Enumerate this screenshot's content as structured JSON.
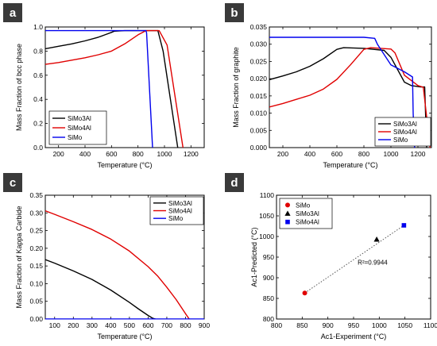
{
  "chart_data": [
    {
      "panel": "a",
      "type": "line",
      "xlabel": "Temperature (°C)",
      "ylabel": "Mass Fraction of bcc phase",
      "xlim": [
        100,
        1300
      ],
      "ylim": [
        0.0,
        1.0
      ],
      "xticks": [
        200,
        400,
        600,
        800,
        1000,
        1200
      ],
      "yticks": [
        0.0,
        0.2,
        0.4,
        0.6,
        0.8,
        1.0
      ],
      "tick_labels_x": [
        "200",
        "400",
        "600",
        "800",
        "1000",
        "1200"
      ],
      "tick_labels_y": [
        "0.0",
        "0.2",
        "0.4",
        "0.6",
        "0.8",
        "1.0"
      ],
      "legend_position": "bottom-left",
      "series": [
        {
          "name": "SiMo3Al",
          "color": "#000000",
          "x": [
            100,
            200,
            300,
            400,
            500,
            550,
            600,
            620,
            700,
            800,
            950,
            990,
            1100
          ],
          "y": [
            0.82,
            0.84,
            0.86,
            0.885,
            0.915,
            0.935,
            0.955,
            0.965,
            0.97,
            0.97,
            0.97,
            0.8,
            0.0
          ]
        },
        {
          "name": "SiMo4Al",
          "color": "#e00000",
          "x": [
            100,
            200,
            300,
            400,
            500,
            600,
            700,
            800,
            860,
            960,
            1020,
            1140
          ],
          "y": [
            0.69,
            0.705,
            0.725,
            0.745,
            0.77,
            0.8,
            0.86,
            0.935,
            0.97,
            0.97,
            0.85,
            0.0
          ]
        },
        {
          "name": "SiMo",
          "color": "#0000ee",
          "x": [
            100,
            200,
            300,
            400,
            500,
            600,
            700,
            800,
            860,
            865,
            910
          ],
          "y": [
            0.97,
            0.97,
            0.97,
            0.97,
            0.97,
            0.97,
            0.97,
            0.97,
            0.97,
            0.95,
            0.0
          ]
        }
      ]
    },
    {
      "panel": "b",
      "type": "line",
      "xlabel": "Temperature (°C)",
      "ylabel": "Mass Fraction of graphite",
      "xlim": [
        100,
        1300
      ],
      "ylim": [
        0.0,
        0.035
      ],
      "xticks": [
        200,
        400,
        600,
        800,
        1000,
        1200
      ],
      "yticks": [
        0.0,
        0.005,
        0.01,
        0.015,
        0.02,
        0.025,
        0.03,
        0.035
      ],
      "tick_labels_x": [
        "200",
        "400",
        "600",
        "800",
        "1000",
        "1200"
      ],
      "tick_labels_y": [
        "0.000",
        "0.005",
        "0.010",
        "0.015",
        "0.020",
        "0.025",
        "0.030",
        "0.035"
      ],
      "legend_position": "bottom-right",
      "series": [
        {
          "name": "SiMo3Al",
          "color": "#000000",
          "x": [
            100,
            200,
            300,
            400,
            500,
            600,
            650,
            800,
            950,
            1000,
            1100,
            1150,
            1220,
            1250,
            1265
          ],
          "y": [
            0.0197,
            0.0208,
            0.022,
            0.0236,
            0.0258,
            0.0285,
            0.029,
            0.0288,
            0.0282,
            0.0262,
            0.019,
            0.018,
            0.0176,
            0.0176,
            0.0
          ]
        },
        {
          "name": "SiMo4Al",
          "color": "#e00000",
          "x": [
            100,
            200,
            300,
            400,
            500,
            600,
            700,
            800,
            850,
            1000,
            1030,
            1100,
            1200,
            1240,
            1290
          ],
          "y": [
            0.0118,
            0.0128,
            0.014,
            0.0152,
            0.017,
            0.0198,
            0.024,
            0.0285,
            0.029,
            0.0286,
            0.0275,
            0.021,
            0.018,
            0.0175,
            0.0
          ]
        },
        {
          "name": "SiMo",
          "color": "#0000ee",
          "x": [
            100,
            800,
            880,
            900,
            1000,
            1100,
            1160,
            1165,
            1175
          ],
          "y": [
            0.032,
            0.032,
            0.0317,
            0.03,
            0.024,
            0.022,
            0.0205,
            0.01,
            0.0
          ]
        }
      ]
    },
    {
      "panel": "c",
      "type": "line",
      "xlabel": "Temperature (°C)",
      "ylabel": "Mass Fraction of Kappa Carbide",
      "xlim": [
        50,
        900
      ],
      "ylim": [
        0.0,
        0.35
      ],
      "xticks": [
        100,
        200,
        300,
        400,
        500,
        600,
        700,
        800,
        900
      ],
      "yticks": [
        0.0,
        0.05,
        0.1,
        0.15,
        0.2,
        0.25,
        0.3,
        0.35
      ],
      "tick_labels_x": [
        "100",
        "200",
        "300",
        "400",
        "500",
        "600",
        "700",
        "800",
        "900"
      ],
      "tick_labels_y": [
        "0.00",
        "0.05",
        "0.10",
        "0.15",
        "0.20",
        "0.25",
        "0.30",
        "0.35"
      ],
      "legend_position": "top-right",
      "series": [
        {
          "name": "SiMo3Al",
          "color": "#000000",
          "x": [
            50,
            100,
            200,
            300,
            400,
            500,
            550,
            600,
            625,
            640
          ],
          "y": [
            0.168,
            0.158,
            0.136,
            0.112,
            0.082,
            0.047,
            0.028,
            0.01,
            0.002,
            0.0
          ]
        },
        {
          "name": "SiMo4Al",
          "color": "#e00000",
          "x": [
            50,
            100,
            200,
            300,
            400,
            500,
            600,
            650,
            700,
            750,
            800,
            820
          ],
          "y": [
            0.306,
            0.296,
            0.275,
            0.253,
            0.226,
            0.192,
            0.148,
            0.122,
            0.09,
            0.055,
            0.015,
            0.0
          ]
        },
        {
          "name": "SiMo",
          "color": "#0000ee",
          "x": [
            50,
            900
          ],
          "y": [
            0.0,
            0.0
          ]
        }
      ]
    },
    {
      "panel": "d",
      "type": "scatter",
      "xlabel": "Ac1-Experiment (°C)",
      "ylabel": "Ac1-Predicted (°C)",
      "xlim": [
        800,
        1100
      ],
      "ylim": [
        800,
        1100
      ],
      "xticks": [
        800,
        850,
        900,
        950,
        1000,
        1050,
        1100
      ],
      "yticks": [
        800,
        850,
        900,
        950,
        1000,
        1050,
        1100
      ],
      "tick_labels_x": [
        "800",
        "850",
        "900",
        "950",
        "1000",
        "1050",
        "1100"
      ],
      "tick_labels_y": [
        "800",
        "850",
        "900",
        "950",
        "1000",
        "1050",
        "1100"
      ],
      "legend_position": "top-left",
      "annotation": "R²=0.9944",
      "fit_line": {
        "x": [
          855,
          1048
        ],
        "y": [
          863,
          1027
        ]
      },
      "series": [
        {
          "name": "SiMo",
          "color": "#e00000",
          "marker": "circle",
          "x": [
            855
          ],
          "y": [
            863
          ]
        },
        {
          "name": "SiMo3Al",
          "color": "#000000",
          "marker": "triangle",
          "x": [
            995
          ],
          "y": [
            993
          ]
        },
        {
          "name": "SiMo4Al",
          "color": "#0000ee",
          "marker": "square",
          "x": [
            1048
          ],
          "y": [
            1027
          ]
        }
      ]
    }
  ]
}
